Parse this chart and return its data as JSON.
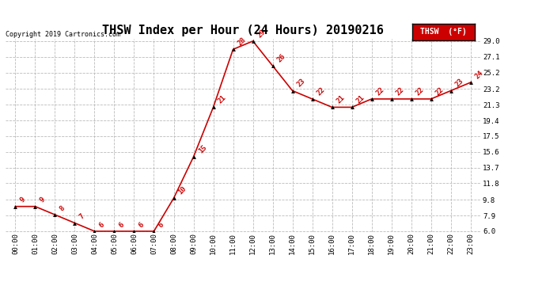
{
  "title": "THSW Index per Hour (24 Hours) 20190216",
  "copyright": "Copyright 2019 Cartronics.com",
  "legend_label": "THSW  (°F)",
  "hours": [
    "00:00",
    "01:00",
    "02:00",
    "03:00",
    "04:00",
    "05:00",
    "06:00",
    "07:00",
    "08:00",
    "09:00",
    "10:00",
    "11:00",
    "12:00",
    "13:00",
    "14:00",
    "15:00",
    "16:00",
    "17:00",
    "18:00",
    "19:00",
    "20:00",
    "21:00",
    "22:00",
    "23:00"
  ],
  "values": [
    9,
    9,
    8,
    7,
    6,
    6,
    6,
    6,
    10,
    15,
    21,
    28,
    29,
    26,
    23,
    22,
    21,
    21,
    22,
    22,
    22,
    22,
    23,
    24
  ],
  "line_color": "#cc0000",
  "marker_color": "#000000",
  "ylim_min": 6.0,
  "ylim_max": 29.0,
  "yticks": [
    6.0,
    7.9,
    9.8,
    11.8,
    13.7,
    15.6,
    17.5,
    19.4,
    21.3,
    23.2,
    25.2,
    27.1,
    29.0
  ],
  "bg_color": "#ffffff",
  "grid_color": "#bbbbbb",
  "title_fontsize": 11,
  "label_fontsize": 6.5,
  "annot_fontsize": 6.5,
  "copyright_fontsize": 6
}
